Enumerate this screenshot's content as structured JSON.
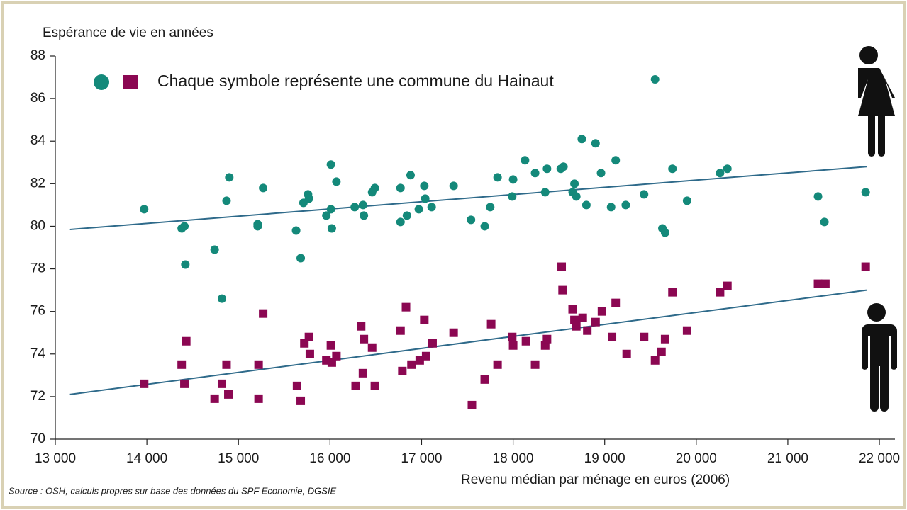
{
  "chart_data": {
    "type": "scatter",
    "y_label": "Espérance de vie en années",
    "x_label": "Revenu médian par ménage en euros (2006)",
    "legend": "Chaque symbole représente une commune du Hainaut",
    "source": "Source : OSH, calculs propres sur base des données du SPF Economie, DGSIE",
    "xlim": [
      13000,
      22170
    ],
    "ylim": [
      70,
      88
    ],
    "xticks": [
      {
        "value": 13000,
        "label": "13 000"
      },
      {
        "value": 14000,
        "label": "14 000"
      },
      {
        "value": 15000,
        "label": "15 000"
      },
      {
        "value": 16000,
        "label": "16 000"
      },
      {
        "value": 17000,
        "label": "17 000"
      },
      {
        "value": 18000,
        "label": "18 000"
      },
      {
        "value": 19000,
        "label": "19 000"
      },
      {
        "value": 20000,
        "label": "20 000"
      },
      {
        "value": 21000,
        "label": "21 000"
      },
      {
        "value": 22000,
        "label": "22 000"
      }
    ],
    "yticks": [
      70,
      72,
      74,
      76,
      78,
      80,
      82,
      84,
      86,
      88
    ],
    "series": [
      {
        "color": "#14897a",
        "marker": "circle",
        "x": [
          13970,
          14420,
          14380,
          14410,
          14740,
          14820,
          14870,
          14900,
          15210,
          15210,
          15270,
          15630,
          15680,
          15710,
          15760,
          15770,
          15960,
          16010,
          16010,
          16020,
          16070,
          16270,
          16360,
          16370,
          16460,
          16490,
          16770,
          16770,
          16840,
          16880,
          16970,
          17030,
          17040,
          17110,
          17350,
          17540,
          17690,
          17750,
          17830,
          17990,
          18000,
          18130,
          18240,
          18350,
          18370,
          18520,
          18550,
          18650,
          18670,
          18690,
          18750,
          18800,
          18900,
          18960,
          19070,
          19120,
          19230,
          19430,
          19550,
          19630,
          19660,
          19740,
          19900,
          20260,
          20340,
          21330,
          21400,
          21850
        ],
        "values": [
          80.8,
          78.2,
          79.9,
          80.0,
          78.9,
          76.6,
          81.2,
          82.3,
          80.1,
          80.0,
          81.8,
          79.8,
          78.5,
          81.1,
          81.5,
          81.3,
          80.5,
          82.9,
          80.8,
          79.9,
          82.1,
          80.9,
          81.0,
          80.5,
          81.6,
          81.8,
          81.8,
          80.2,
          80.5,
          82.4,
          80.8,
          81.9,
          81.3,
          80.9,
          81.9,
          80.3,
          80.0,
          80.9,
          82.3,
          81.4,
          82.2,
          83.1,
          82.5,
          81.6,
          82.7,
          82.7,
          82.8,
          81.6,
          82.0,
          81.4,
          84.1,
          81.0,
          83.9,
          82.5,
          80.9,
          83.1,
          81.0,
          81.5,
          86.9,
          79.9,
          79.7,
          82.7,
          81.2,
          82.5,
          82.7,
          81.4,
          80.2,
          81.6
        ]
      },
      {
        "color": "#8b0752",
        "marker": "square",
        "x": [
          13970,
          14430,
          14380,
          14410,
          14740,
          14820,
          14870,
          14890,
          15220,
          15220,
          15270,
          15640,
          15680,
          15720,
          15770,
          15780,
          15960,
          16010,
          16020,
          16070,
          16280,
          16340,
          16360,
          16370,
          16460,
          16490,
          16770,
          16790,
          16830,
          16890,
          16980,
          17030,
          17050,
          17120,
          17350,
          17550,
          17690,
          17760,
          17830,
          17990,
          18000,
          18140,
          18240,
          18350,
          18370,
          18530,
          18540,
          18650,
          18670,
          18690,
          18760,
          18810,
          18900,
          18970,
          19080,
          19120,
          19240,
          19430,
          19550,
          19620,
          19660,
          19740,
          19900,
          20260,
          20340,
          21330,
          21410,
          21850
        ],
        "values": [
          72.6,
          74.6,
          73.5,
          72.6,
          71.9,
          72.6,
          73.5,
          72.1,
          73.5,
          71.9,
          75.9,
          72.5,
          71.8,
          74.5,
          74.8,
          74.0,
          73.7,
          74.4,
          73.6,
          73.9,
          72.5,
          75.3,
          73.1,
          74.7,
          74.3,
          72.5,
          75.1,
          73.2,
          76.2,
          73.5,
          73.7,
          75.6,
          73.9,
          74.5,
          75.0,
          71.6,
          72.8,
          75.4,
          73.5,
          74.8,
          74.4,
          74.6,
          73.5,
          74.4,
          74.7,
          78.1,
          77.0,
          76.1,
          75.6,
          75.3,
          75.7,
          75.1,
          75.5,
          76.0,
          74.8,
          76.4,
          74.0,
          74.8,
          73.7,
          74.1,
          74.7,
          76.9,
          75.1,
          76.9,
          77.2,
          77.3,
          77.3,
          78.1
        ]
      }
    ],
    "trendlines": [
      {
        "color": "#2e6a8a",
        "x": [
          13160,
          21860
        ],
        "values": [
          79.85,
          82.8
        ]
      },
      {
        "color": "#2e6a8a",
        "x": [
          13160,
          21860
        ],
        "values": [
          72.1,
          77.0
        ]
      }
    ]
  }
}
